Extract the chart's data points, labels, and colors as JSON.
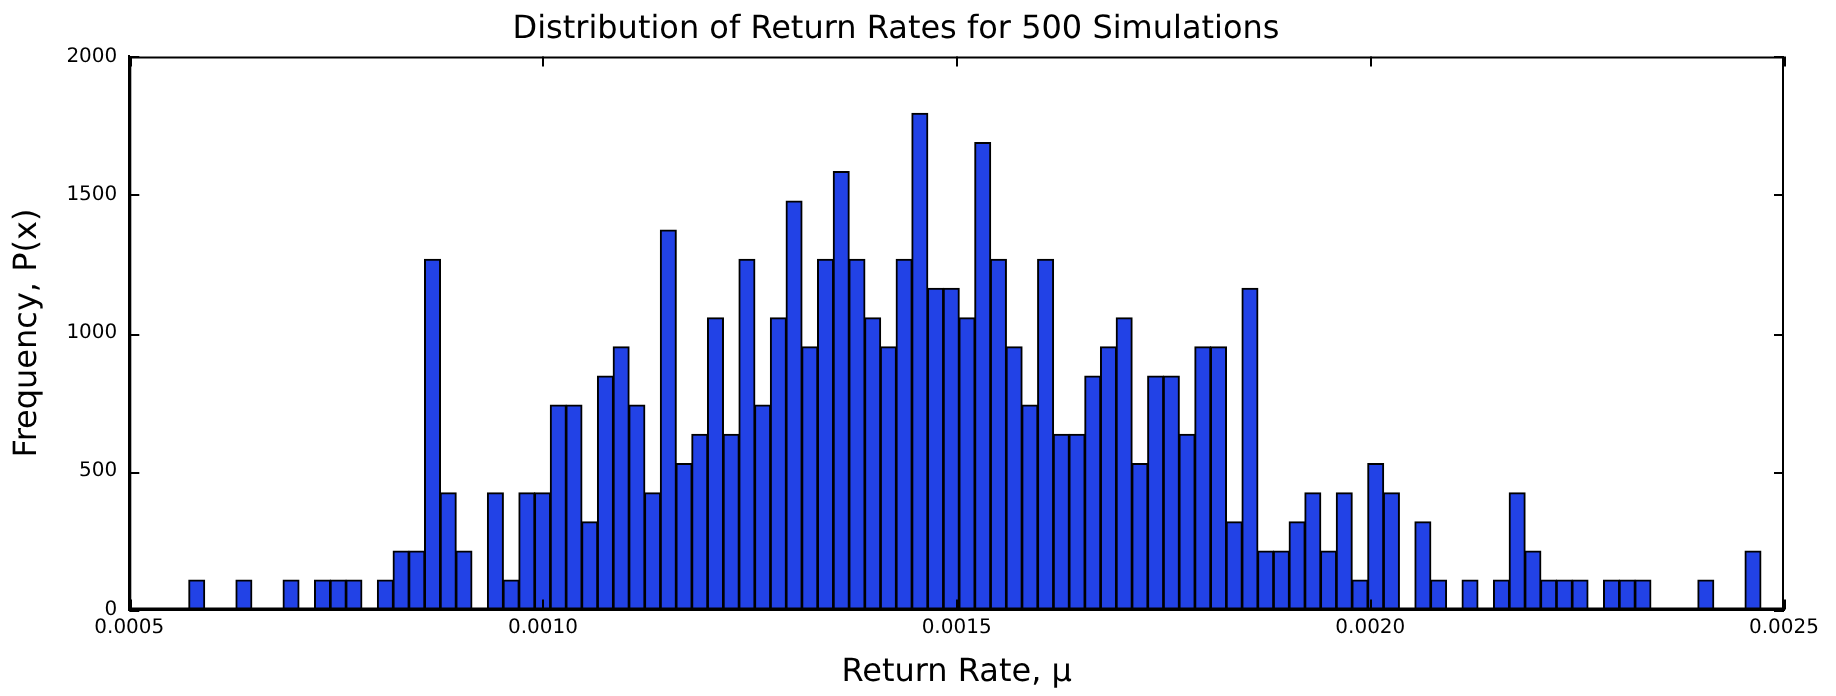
{
  "chart_data": {
    "type": "histogram",
    "title": "Distribution of Return Rates for 500 Simulations",
    "xlabel": "Return Rate, μ",
    "ylabel": "Frequency, P(x)",
    "bins": [
      0.000572,
      0.000591,
      0.00061,
      0.000629,
      0.000648,
      0.000667,
      0.000686,
      0.000705,
      0.000724,
      0.000743,
      0.000762,
      0.000781,
      0.0008,
      0.000819,
      0.000838,
      0.000857,
      0.000876,
      0.000895,
      0.000914,
      0.000933,
      0.000952,
      0.000971,
      0.00099,
      0.001009,
      0.001028,
      0.001047,
      0.001066,
      0.001085,
      0.001104,
      0.001123,
      0.001142,
      0.001161,
      0.00118,
      0.001199,
      0.001218,
      0.001237,
      0.001256,
      0.001275,
      0.001294,
      0.001313,
      0.001332,
      0.001351,
      0.00137,
      0.001389,
      0.001408,
      0.001427,
      0.001446,
      0.001465,
      0.001484,
      0.001503,
      0.001522,
      0.001541,
      0.00156,
      0.001579,
      0.001598,
      0.001617,
      0.001636,
      0.001655,
      0.001674,
      0.001693,
      0.001712,
      0.001731,
      0.00175,
      0.001769,
      0.001788,
      0.001807,
      0.001826,
      0.001845,
      0.001864,
      0.001883,
      0.001902,
      0.001921,
      0.00194,
      0.001959,
      0.001978,
      0.001997,
      0.002016,
      0.002035,
      0.002054,
      0.002073,
      0.002092,
      0.002111,
      0.00213,
      0.002149,
      0.002168,
      0.002187,
      0.002206,
      0.002225,
      0.002244,
      0.002263,
      0.002282,
      0.002301,
      0.00232,
      0.002339,
      0.002358,
      0.002377,
      0.002396,
      0.002415,
      0.002434,
      0.002453,
      0.002472
    ],
    "values": [
      106,
      0,
      0,
      106,
      0,
      0,
      106,
      0,
      106,
      106,
      106,
      0,
      106,
      211,
      211,
      1266,
      422,
      211,
      0,
      422,
      106,
      422,
      422,
      739,
      739,
      317,
      844,
      950,
      739,
      422,
      1372,
      528,
      633,
      1055,
      633,
      1266,
      739,
      1055,
      1477,
      950,
      1266,
      1583,
      1266,
      1055,
      950,
      1266,
      1794,
      1161,
      1161,
      1055,
      1688,
      1266,
      950,
      739,
      1266,
      633,
      633,
      844,
      950,
      1055,
      528,
      844,
      844,
      633,
      950,
      950,
      317,
      1161,
      211,
      211,
      317,
      422,
      211,
      422,
      106,
      528,
      422,
      0,
      317,
      106,
      0,
      106,
      0,
      106,
      422,
      211,
      106,
      106,
      106,
      0,
      106,
      106,
      106,
      0,
      0,
      0,
      106,
      0,
      0,
      211
    ],
    "color": "#2242e6",
    "xlim": [
      0.0005,
      0.0025
    ],
    "xticks": [
      {
        "value": 0.0005,
        "label": "0.0005"
      },
      {
        "value": 0.001,
        "label": "0.0010"
      },
      {
        "value": 0.0015,
        "label": "0.0015"
      },
      {
        "value": 0.002,
        "label": "0.0020"
      },
      {
        "value": 0.0025,
        "label": "0.0025"
      }
    ],
    "ylim": [
      0,
      2000
    ],
    "yticks": [
      0,
      500,
      1000,
      1500,
      2000
    ],
    "grid": false,
    "legend": false
  }
}
